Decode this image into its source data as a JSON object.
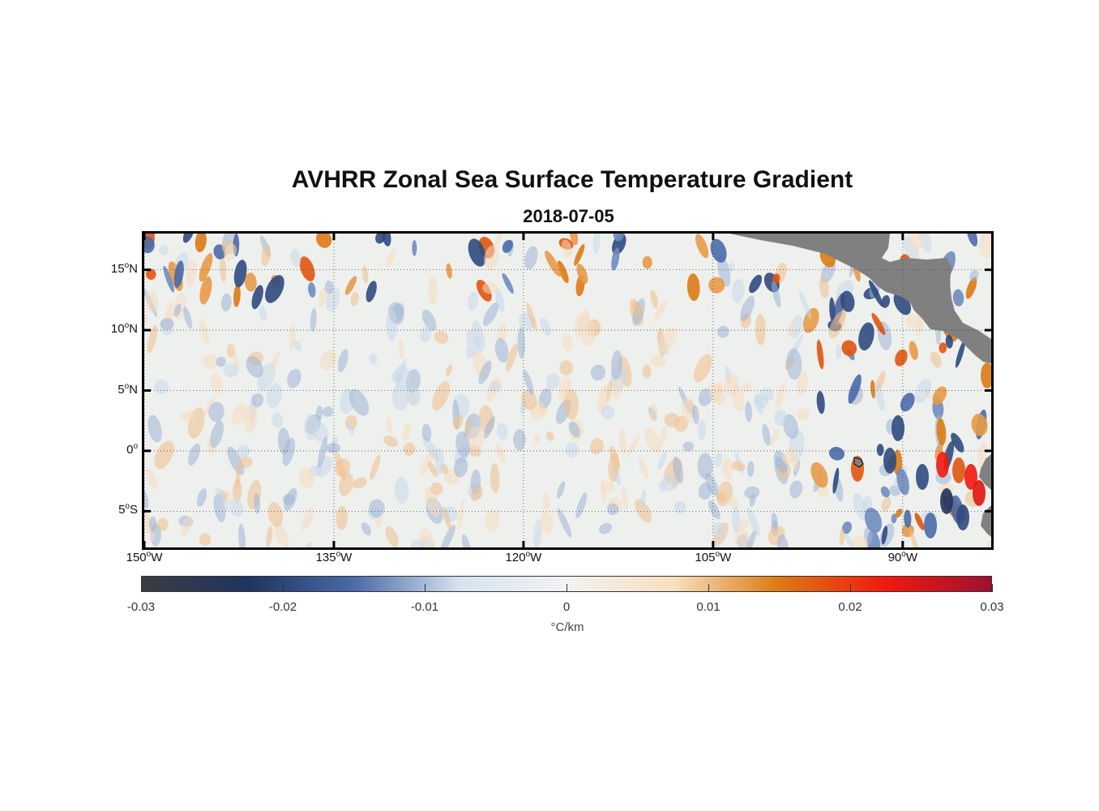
{
  "title": "AVHRR Zonal Sea Surface Temperature Gradient",
  "subtitle": "2018-07-05",
  "map": {
    "lon_range": [
      -150,
      -83
    ],
    "lat_range": [
      -8,
      18
    ],
    "x_ticks": [
      {
        "value": -150,
        "deg": "150",
        "hemi": "W"
      },
      {
        "value": -135,
        "deg": "135",
        "hemi": "W"
      },
      {
        "value": -120,
        "deg": "120",
        "hemi": "W"
      },
      {
        "value": -105,
        "deg": "105",
        "hemi": "W"
      },
      {
        "value": -90,
        "deg": "90",
        "hemi": "W"
      }
    ],
    "y_ticks": [
      {
        "value": 15,
        "deg": "15",
        "hemi": "N"
      },
      {
        "value": 10,
        "deg": "10",
        "hemi": "N"
      },
      {
        "value": 5,
        "deg": "5",
        "hemi": "N"
      },
      {
        "value": 0,
        "deg": "0",
        "hemi": ""
      },
      {
        "value": -5,
        "deg": "5",
        "hemi": "S"
      }
    ],
    "gridlines": "dotted",
    "land_color": "#808080",
    "ocean_background": "#eef0ee"
  },
  "colorbar": {
    "range": [
      -0.03,
      0.03
    ],
    "ticks": [
      "-0.03",
      "-0.02",
      "-0.01",
      "0",
      "0.01",
      "0.02",
      "0.03"
    ],
    "unit": "°C/km",
    "colormap": [
      "#3b3d42",
      "#1e3560",
      "#4a6aa8",
      "#d6e4f0",
      "#f2f2f2",
      "#f8e0c0",
      "#dd7a14",
      "#ef1a10",
      "#a01030"
    ]
  }
}
